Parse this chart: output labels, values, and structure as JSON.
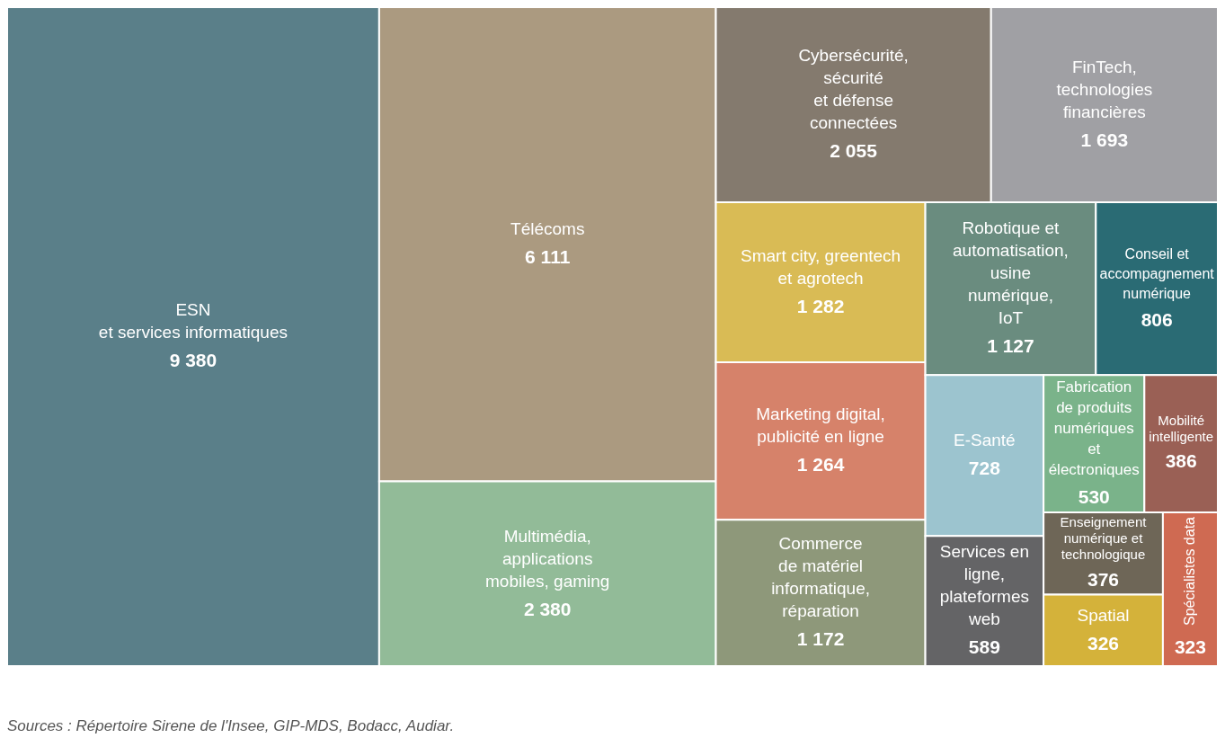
{
  "chart_data": {
    "type": "other",
    "categories": [
      "ESN\net services informatiques",
      "Télécoms",
      "Multimédia,\napplications\nmobiles, gaming",
      "Cybersécurité,\nsécurité\net défense\nconnectées",
      "FinTech,\ntechnologies\nfinancières",
      "Smart city, greentech\net agrotech",
      "Marketing digital,\npublicité en ligne",
      "Commerce\nde matériel\ninformatique,\nréparation",
      "Robotique et\nautomatisation,\nusine\nnumérique,\nIoT",
      "Conseil et accompagnement numérique",
      "E-Santé",
      "Services en ligne,\nplateformes web",
      "Fabrication\nde produits\nnumériques et\nélectroniques",
      "Mobilité\nintelligente",
      "Enseignement numérique et technologique",
      "Spatial",
      "Spécialistes data"
    ],
    "values": [
      9380,
      6111,
      2380,
      2055,
      1693,
      1282,
      1264,
      1172,
      1127,
      806,
      728,
      589,
      530,
      386,
      376,
      326,
      323
    ],
    "value_labels": [
      "9 380",
      "6 111",
      "2 380",
      "2 055",
      "1 693",
      "1 282",
      "1 264",
      "1 172",
      "1 127",
      "806",
      "728",
      "589",
      "530",
      "386",
      "376",
      "326",
      "323"
    ],
    "colors": [
      "#5a7f89",
      "#ab9a80",
      "#92bb98",
      "#847a6e",
      "#a0a0a4",
      "#d9bb55",
      "#d6826a",
      "#8e987a",
      "#6a8c7f",
      "#2a6b74",
      "#9cc4cf",
      "#646466",
      "#7ab38a",
      "#9a6055",
      "#6e6657",
      "#d4b23a",
      "#cf6a52"
    ],
    "annotations": [
      "Sources : Répertoire Sirene de l'Insee, GIP-MDS, Bodacc, Audiar."
    ]
  }
}
